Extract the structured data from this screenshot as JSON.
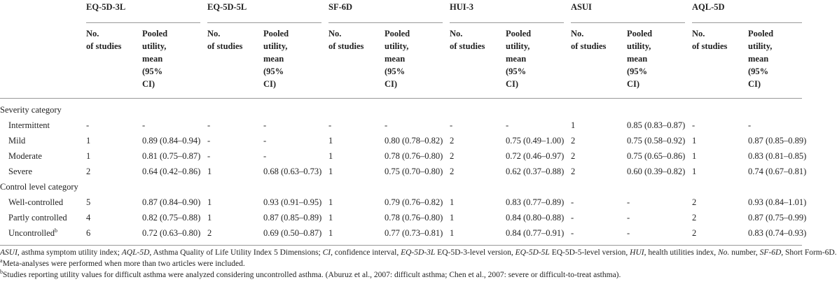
{
  "table": {
    "instruments": [
      "EQ-5D-3L",
      "EQ-5D-5L",
      "SF-6D",
      "HUI-3",
      "ASUI",
      "AQL-5D"
    ],
    "sub_headers": {
      "count": [
        "No.",
        "of studies"
      ],
      "pooled": [
        "Pooled",
        "utility,",
        "mean",
        "(95%",
        "CI)"
      ]
    },
    "sections": [
      {
        "title": "Severity category",
        "rows": [
          {
            "label": "Intermittent",
            "cells": [
              "-",
              "-",
              "-",
              "-",
              "-",
              "-",
              "-",
              "-",
              "1",
              "0.85 (0.83–0.87)",
              "-",
              "-"
            ]
          },
          {
            "label": "Mild",
            "cells": [
              "1",
              "0.89 (0.84–0.94)",
              "-",
              "-",
              "1",
              "0.80 (0.78–0.82)",
              "2",
              "0.75 (0.49–1.00)",
              "2",
              "0.75 (0.58–0.92)",
              "1",
              "0.87 (0.85–0.89)"
            ]
          },
          {
            "label": "Moderate",
            "cells": [
              "1",
              "0.81 (0.75–0.87)",
              "-",
              "-",
              "1",
              "0.78 (0.76–0.80)",
              "2",
              "0.72 (0.46–0.97)",
              "2",
              "0.75 (0.65–0.86)",
              "1",
              "0.83 (0.81–0.85)"
            ]
          },
          {
            "label": "Severe",
            "cells": [
              "2",
              "0.64 (0.42–0.86)",
              "1",
              "0.68 (0.63–0.73)",
              "1",
              "0.75 (0.70–0.80)",
              "2",
              "0.62 (0.37–0.88)",
              "2",
              "0.60 (0.39–0.82)",
              "1",
              "0.74 (0.67–0.81)"
            ]
          }
        ]
      },
      {
        "title": "Control level category",
        "rows": [
          {
            "label": "Well-controlled",
            "cells": [
              "5",
              "0.87 (0.84–0.90)",
              "1",
              "0.93 (0.91–0.95)",
              "1",
              "0.79 (0.76–0.82)",
              "1",
              "0.83 (0.77–0.89)",
              "-",
              "-",
              "2",
              "0.93 (0.84–1.01)"
            ]
          },
          {
            "label": "Partly controlled",
            "cells": [
              "4",
              "0.82 (0.75–0.88)",
              "1",
              "0.87 (0.85–0.89)",
              "1",
              "0.78 (0.76–0.80)",
              "1",
              "0.84 (0.80–0.88)",
              "-",
              "-",
              "2",
              "0.87 (0.75–0.99)"
            ]
          },
          {
            "label": "Uncontrolled",
            "sup": "b",
            "cells": [
              "6",
              "0.72 (0.63–0.80)",
              "2",
              "0.69 (0.50–0.87)",
              "1",
              "0.77 (0.73–0.81)",
              "1",
              "0.84 (0.77–0.91)",
              "-",
              "-",
              "2",
              "0.83 (0.74–0.93)"
            ]
          }
        ]
      }
    ],
    "footnotes": {
      "abbreviations": [
        {
          "abbr": "ASUI",
          "text": ", asthma symptom utility index; "
        },
        {
          "abbr": "AQL-5D",
          "text": ", Asthma Quality of Life Utility Index 5 Dimensions; "
        },
        {
          "abbr": "CI",
          "text": ", confidence interval, "
        },
        {
          "abbr": "EQ-5D-3L",
          "text": " EQ-5D-3-level version, "
        },
        {
          "abbr": "EQ-5D-5L",
          "text": " EQ-5D-5-level version, "
        },
        {
          "abbr": "HUI",
          "text": ", health utilities index, "
        },
        {
          "abbr": "No.",
          "text": " number, "
        },
        {
          "abbr": "SF-6D",
          "text": ", Short Form-6D."
        }
      ],
      "notes": [
        {
          "mark": "a",
          "text": "Meta-analyses were performed when more than two articles were included."
        },
        {
          "mark": "b",
          "text": "Studies reporting utility values for difficult asthma were analyzed considering uncontrolled asthma. (Aburuz et al., 2007: difficult asthma; Chen et al., 2007: severe or difficult-to-treat asthma)."
        }
      ]
    }
  }
}
